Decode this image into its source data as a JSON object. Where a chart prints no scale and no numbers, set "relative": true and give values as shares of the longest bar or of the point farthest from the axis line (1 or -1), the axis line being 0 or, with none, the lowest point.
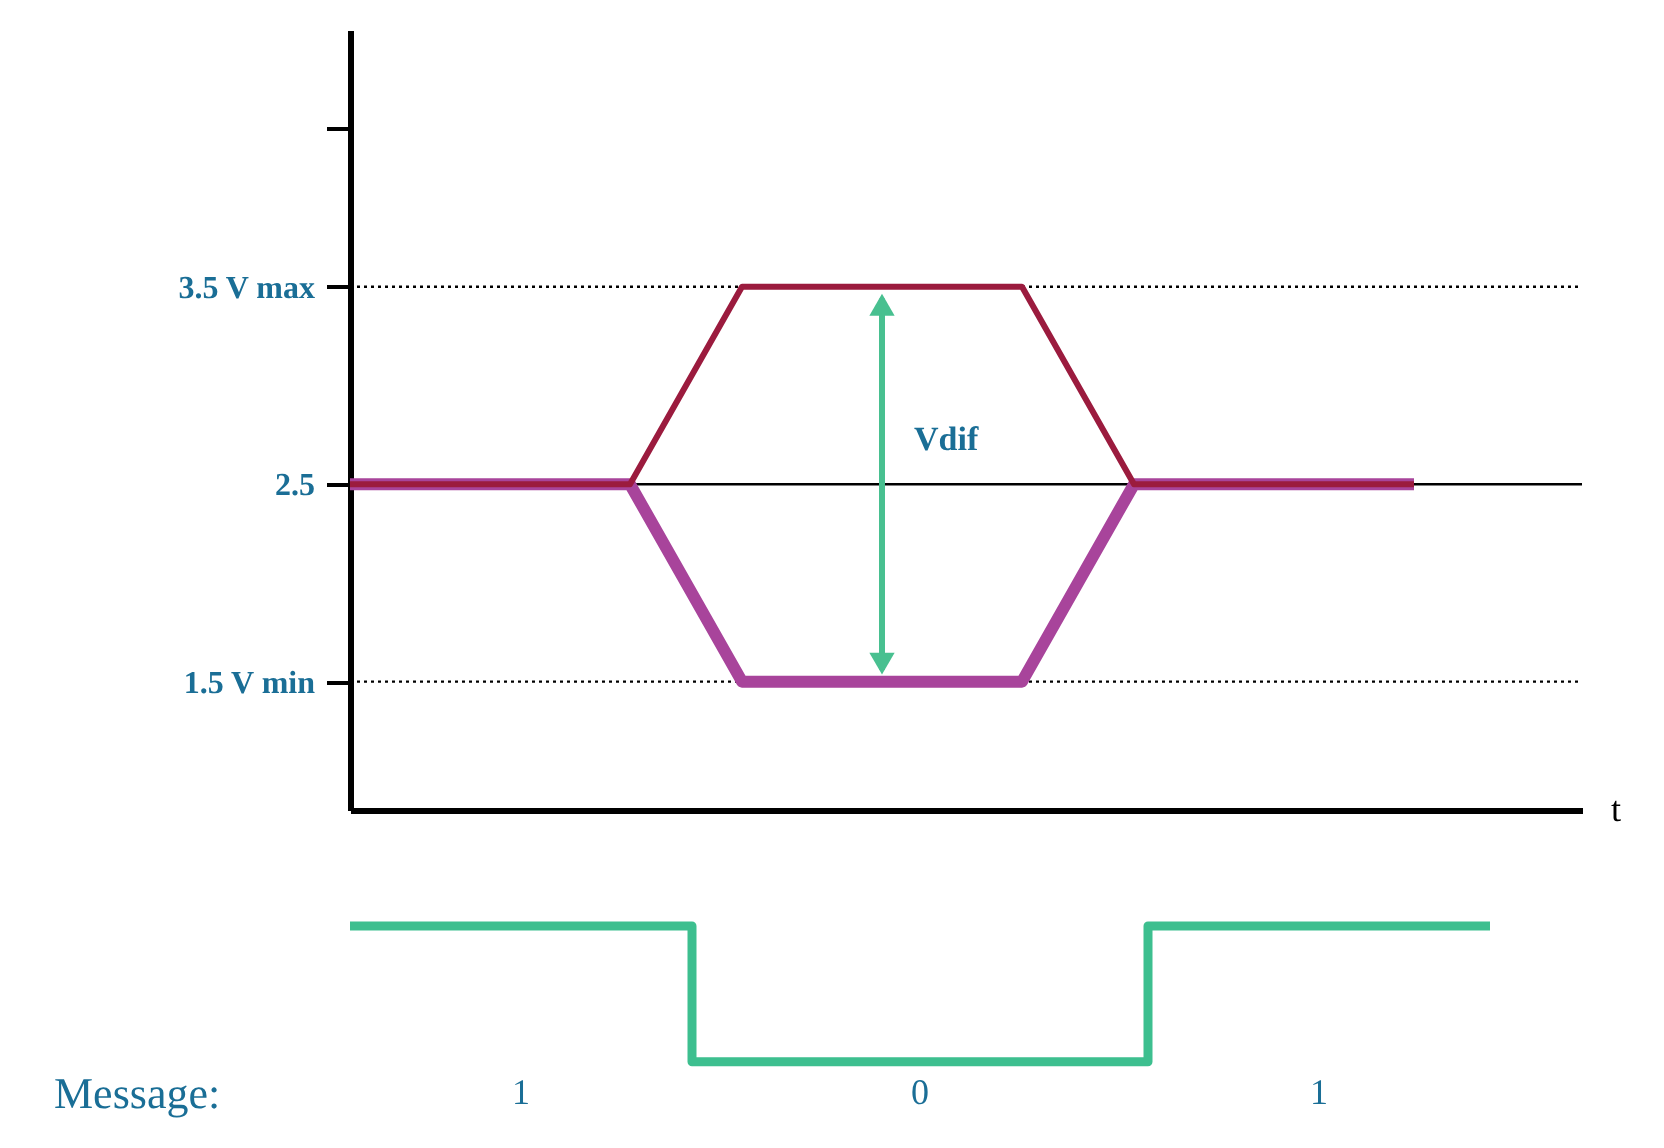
{
  "chart_data": [
    {
      "type": "line",
      "xlabel": "t",
      "categories": [
        null,
        null,
        null,
        null,
        null,
        null,
        null,
        null,
        null,
        null,
        null,
        null,
        null,
        null,
        null,
        null,
        null,
        null,
        null,
        null,
        null,
        null,
        null
      ],
      "series": [
        {
          "color": "#9b1b3e",
          "values": [
            2.5,
            2.5,
            2.5,
            2.5,
            2.5,
            2.5,
            3.0,
            3.5,
            3.5,
            3.5,
            3.5,
            3.5,
            3.5,
            3.0,
            2.5,
            2.5,
            2.5,
            2.5,
            2.5,
            2.5,
            null,
            null,
            null
          ]
        },
        {
          "color": "#a8449b",
          "values": [
            2.5,
            2.5,
            2.5,
            2.5,
            2.5,
            2.5,
            2.0,
            1.5,
            1.5,
            1.5,
            1.5,
            1.5,
            1.5,
            2.0,
            2.5,
            2.5,
            2.5,
            2.5,
            2.5,
            2.5,
            null,
            null,
            null
          ]
        }
      ],
      "ylim": [
        0.85,
        4.8
      ],
      "yticks": [
        {
          "value": 1.5,
          "label": "1.5 V min"
        },
        2.5,
        {
          "value": 3.5,
          "label": "3.5 V max"
        },
        {
          "value": 4.3,
          "label": null
        }
      ],
      "ref_lines": [
        {
          "axis": "y",
          "value": 3.5,
          "line_style": "dotted",
          "color": "#000000"
        },
        {
          "axis": "y",
          "value": 2.5,
          "line_style": "solid",
          "color": "#000000"
        },
        {
          "axis": "y",
          "value": 1.5,
          "line_style": "dotted",
          "color": "#000000"
        }
      ],
      "annotations": [
        "Vdif"
      ],
      "tick_labels": "y",
      "grid": false,
      "legend": false
    },
    {
      "type": "step",
      "relative": true,
      "categories": [
        null,
        null,
        null,
        null,
        null,
        null,
        null,
        null,
        null,
        null,
        null
      ],
      "series": [
        {
          "color": "#3dbf8f",
          "values": [
            1,
            1,
            1,
            0.42,
            0.42,
            0.42,
            0.42,
            1,
            1,
            1,
            1
          ]
        }
      ],
      "annotations": [
        "Message:",
        "1",
        "0",
        "1"
      ],
      "tick_labels": false,
      "legend": false
    }
  ]
}
